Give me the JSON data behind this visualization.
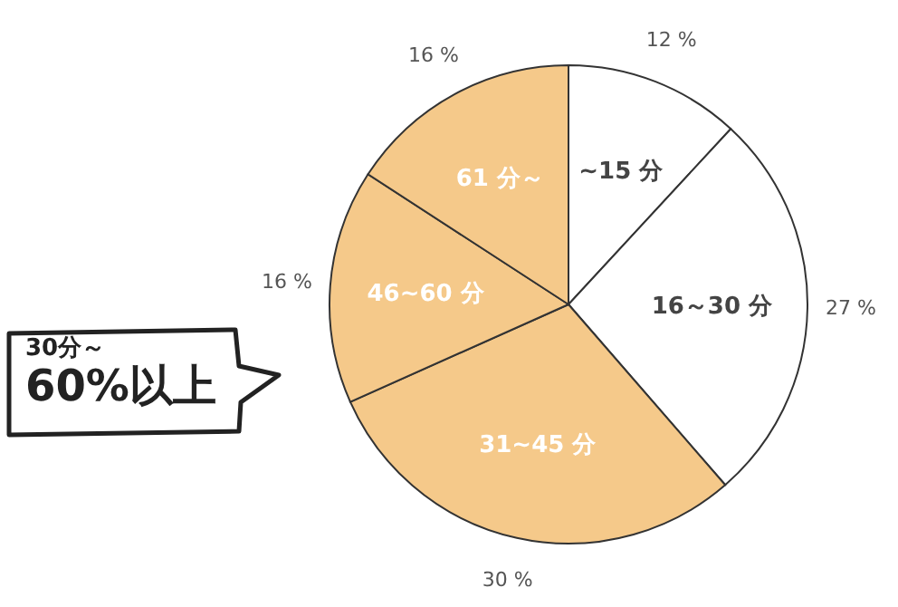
{
  "chart_data": {
    "type": "pie",
    "categories": [
      "~15 分",
      "16～30 分",
      "31~45 分",
      "46~60 分",
      "61 分～"
    ],
    "values": [
      12,
      27,
      30,
      16,
      16
    ],
    "colors": [
      "#ffffff",
      "#ffffff",
      "#f5c98a",
      "#f5c98a",
      "#f5c98a"
    ],
    "value_labels": [
      "12 %",
      "27 %",
      "30 %",
      "16 %",
      "16 %"
    ],
    "annotations": [
      "30分～",
      "60%以上"
    ]
  }
}
